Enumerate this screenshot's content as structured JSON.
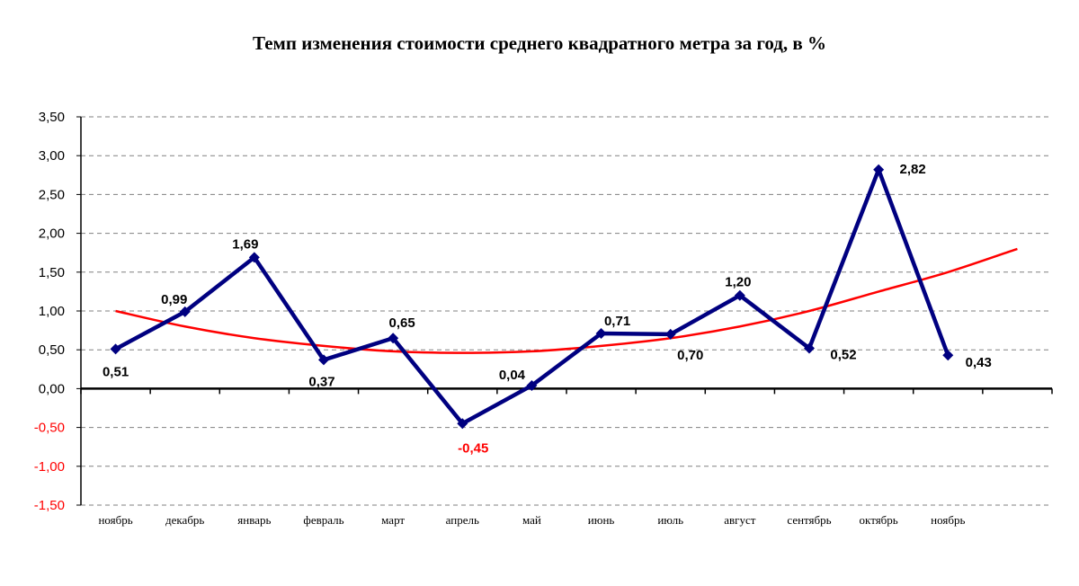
{
  "chart_data": {
    "type": "line",
    "title": "Темп изменения стоимости среднего квадратного метра за год, в %",
    "categories": [
      "ноябрь",
      "декабрь",
      "январь",
      "февраль",
      "март",
      "апрель",
      "май",
      "июнь",
      "июль",
      "август",
      "сентябрь",
      "октябрь",
      "ноябрь"
    ],
    "series": [
      {
        "values": [
          0.51,
          0.99,
          1.69,
          0.37,
          0.65,
          -0.45,
          0.04,
          0.71,
          0.7,
          1.2,
          0.52,
          2.82,
          0.43
        ],
        "labels": [
          "0,51",
          "0,99",
          "1,69",
          "0,37",
          "0,65",
          "-0,45",
          "0,04",
          "0,71",
          "0,70",
          "1,20",
          "0,52",
          "2,82",
          "0,43"
        ],
        "color": "#000080",
        "marker": "diamond"
      }
    ],
    "trendline": {
      "type": "polynomial",
      "color": "#ff0000",
      "values": [
        1.0,
        0.8,
        0.65,
        0.55,
        0.48,
        0.46,
        0.48,
        0.55,
        0.65,
        0.8,
        1.0,
        1.25,
        1.5,
        1.8
      ]
    },
    "ylim": [
      -1.5,
      3.5
    ],
    "yticks": [
      "3,50",
      "3,00",
      "2,50",
      "2,00",
      "1,50",
      "1,00",
      "0,50",
      "0,00",
      "-0,50",
      "-1,00",
      "-1,50"
    ],
    "negative_color": "#ff0000",
    "grid": true,
    "legend": "none"
  }
}
